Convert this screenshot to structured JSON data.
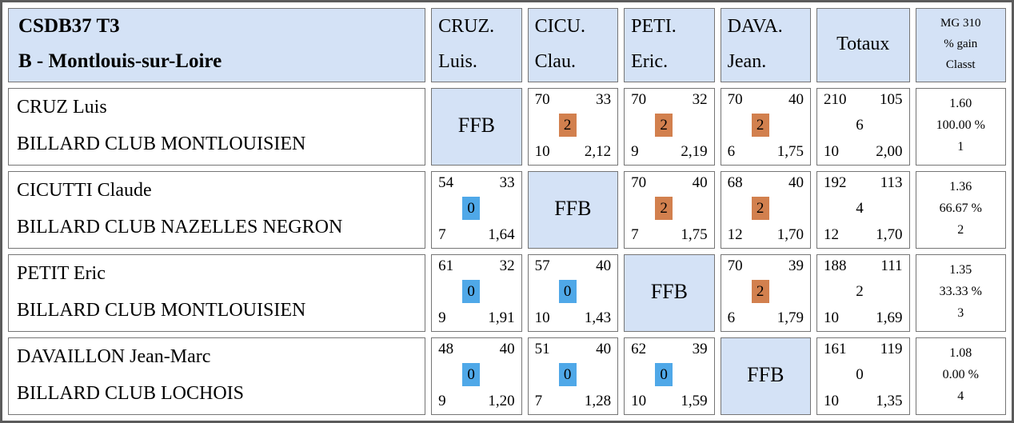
{
  "title": {
    "line1": "CSDB37 T3",
    "line2": "B - Montlouis-sur-Loire"
  },
  "columns": [
    {
      "line1": "CRUZ.",
      "line2": "Luis."
    },
    {
      "line1": "CICU.",
      "line2": "Clau."
    },
    {
      "line1": "PETI.",
      "line2": "Eric."
    },
    {
      "line1": "DAVA.",
      "line2": "Jean."
    }
  ],
  "totaux_label": "Totaux",
  "mg_header": {
    "line1": "MG 310",
    "line2": "% gain",
    "line3": "Classt"
  },
  "ffb_label": "FFB",
  "colors": {
    "header_blue": "#d4e2f6",
    "win_orange": "#d2804e",
    "loss_blue": "#4fa8e8"
  },
  "rows": [
    {
      "player": "CRUZ Luis",
      "club": "BILLARD CLUB MONTLOUISIEN",
      "matches": [
        {
          "ffb": true
        },
        {
          "tl": "70",
          "tr": "33",
          "pts": "2",
          "result": "win",
          "bl": "10",
          "br": "2,12"
        },
        {
          "tl": "70",
          "tr": "32",
          "pts": "2",
          "result": "win",
          "bl": "9",
          "br": "2,19"
        },
        {
          "tl": "70",
          "tr": "40",
          "pts": "2",
          "result": "win",
          "bl": "6",
          "br": "1,75"
        }
      ],
      "totals": {
        "tl": "210",
        "tr": "105",
        "pts": "6",
        "bl": "10",
        "br": "2,00"
      },
      "summary": {
        "mg": "1.60",
        "pct": "100.00 %",
        "rank": "1"
      }
    },
    {
      "player": "CICUTTI Claude",
      "club": "BILLARD CLUB NAZELLES NEGRON",
      "matches": [
        {
          "tl": "54",
          "tr": "33",
          "pts": "0",
          "result": "loss",
          "bl": "7",
          "br": "1,64"
        },
        {
          "ffb": true
        },
        {
          "tl": "70",
          "tr": "40",
          "pts": "2",
          "result": "win",
          "bl": "7",
          "br": "1,75"
        },
        {
          "tl": "68",
          "tr": "40",
          "pts": "2",
          "result": "win",
          "bl": "12",
          "br": "1,70"
        }
      ],
      "totals": {
        "tl": "192",
        "tr": "113",
        "pts": "4",
        "bl": "12",
        "br": "1,70"
      },
      "summary": {
        "mg": "1.36",
        "pct": "66.67 %",
        "rank": "2"
      }
    },
    {
      "player": "PETIT Eric",
      "club": "BILLARD CLUB MONTLOUISIEN",
      "matches": [
        {
          "tl": "61",
          "tr": "32",
          "pts": "0",
          "result": "loss",
          "bl": "9",
          "br": "1,91"
        },
        {
          "tl": "57",
          "tr": "40",
          "pts": "0",
          "result": "loss",
          "bl": "10",
          "br": "1,43"
        },
        {
          "ffb": true
        },
        {
          "tl": "70",
          "tr": "39",
          "pts": "2",
          "result": "win",
          "bl": "6",
          "br": "1,79"
        }
      ],
      "totals": {
        "tl": "188",
        "tr": "111",
        "pts": "2",
        "bl": "10",
        "br": "1,69"
      },
      "summary": {
        "mg": "1.35",
        "pct": "33.33 %",
        "rank": "3"
      }
    },
    {
      "player": "DAVAILLON Jean-Marc",
      "club": "BILLARD CLUB LOCHOIS",
      "matches": [
        {
          "tl": "48",
          "tr": "40",
          "pts": "0",
          "result": "loss",
          "bl": "9",
          "br": "1,20"
        },
        {
          "tl": "51",
          "tr": "40",
          "pts": "0",
          "result": "loss",
          "bl": "7",
          "br": "1,28"
        },
        {
          "tl": "62",
          "tr": "39",
          "pts": "0",
          "result": "loss",
          "bl": "10",
          "br": "1,59"
        },
        {
          "ffb": true
        }
      ],
      "totals": {
        "tl": "161",
        "tr": "119",
        "pts": "0",
        "bl": "10",
        "br": "1,35"
      },
      "summary": {
        "mg": "1.08",
        "pct": "0.00 %",
        "rank": "4"
      }
    }
  ]
}
